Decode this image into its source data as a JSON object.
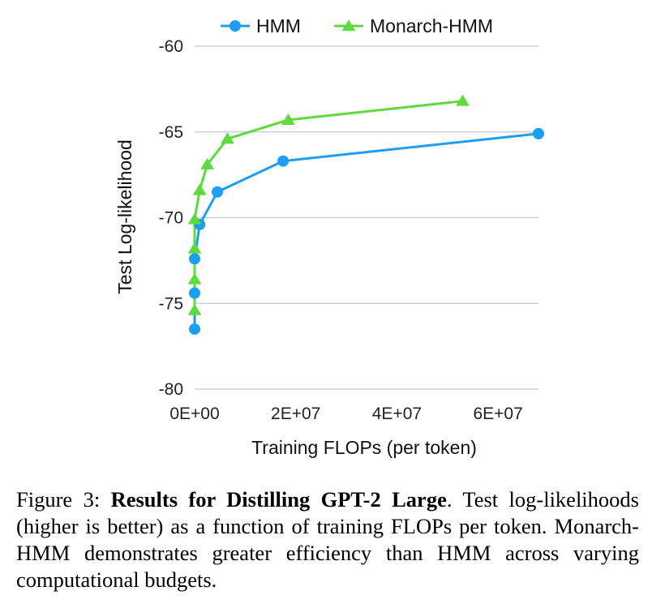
{
  "chart_data": {
    "type": "line",
    "xlabel": "Training FLOPs (per token)",
    "ylabel": "Test Log-likelihood",
    "xlim": [
      0,
      68000000
    ],
    "ylim": [
      -80,
      -60
    ],
    "xticks": [
      {
        "value": 0,
        "label": "0E+00"
      },
      {
        "value": 20000000,
        "label": "2E+07"
      },
      {
        "value": 40000000,
        "label": "4E+07"
      },
      {
        "value": 60000000,
        "label": "6E+07"
      }
    ],
    "yticks": [
      {
        "value": -60,
        "label": "-60"
      },
      {
        "value": -65,
        "label": "-65"
      },
      {
        "value": -70,
        "label": "-70"
      },
      {
        "value": -75,
        "label": "-75"
      },
      {
        "value": -80,
        "label": "-80"
      }
    ],
    "grid": "horizontal",
    "legend": "top",
    "series": [
      {
        "name": "HMM",
        "color": "#1a9ff2",
        "marker": "circle",
        "x": [
          0,
          0,
          0,
          1000000,
          4500000,
          17500000,
          68000000
        ],
        "y": [
          -76.5,
          -74.4,
          -72.4,
          -70.4,
          -68.5,
          -66.7,
          -65.1
        ]
      },
      {
        "name": "Monarch-HMM",
        "color": "#5ed93e",
        "marker": "triangle",
        "x": [
          0,
          0,
          0,
          0,
          1000000,
          2500000,
          6500000,
          18500000,
          53000000
        ],
        "y": [
          -75.4,
          -73.6,
          -71.8,
          -70.1,
          -68.4,
          -66.9,
          -65.4,
          -64.3,
          -63.2
        ]
      }
    ]
  },
  "caption": {
    "prefix": "Figure 3: ",
    "title": "Results for Distilling GPT-2 Large",
    "body": ". Test log-likelihoods (higher is better) as a function of training FLOPs per token. Monarch-HMM demonstrates greater efficiency than HMM across varying computational budgets."
  }
}
